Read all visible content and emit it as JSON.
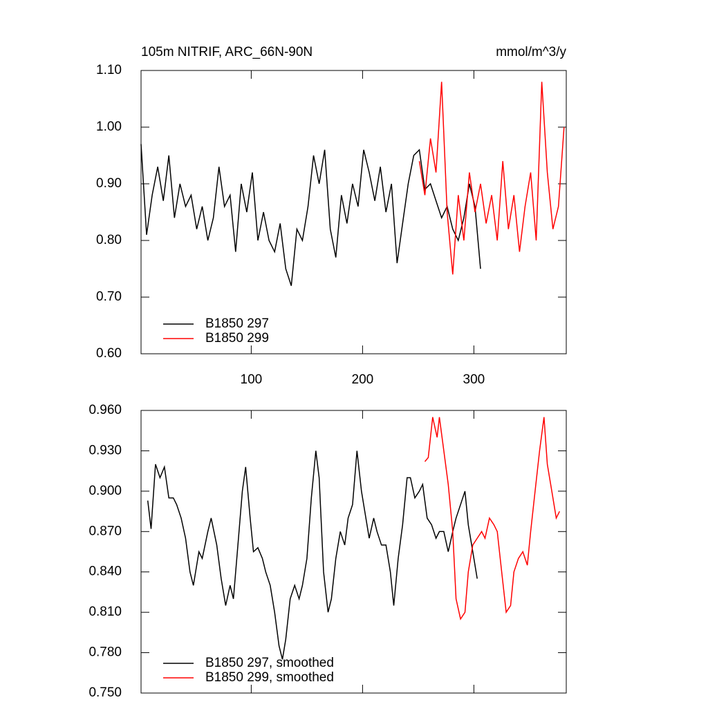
{
  "chart_data": [
    {
      "type": "line",
      "title": "105m NITRIF, ARC_66N-90N",
      "title_right": "mmol/m^3/y",
      "xlim": [
        1,
        383
      ],
      "ylim": [
        0.6,
        1.1
      ],
      "xticks": [
        100,
        200,
        300
      ],
      "xtick_labels": true,
      "yticks": [
        {
          "value": 0.6,
          "label": "0.60"
        },
        {
          "value": 0.7,
          "label": "0.70"
        },
        {
          "value": 0.8,
          "label": "0.80"
        },
        {
          "value": 0.9,
          "label": "0.90"
        },
        {
          "value": 1.0,
          "label": "1.00"
        },
        {
          "value": 1.1,
          "label": "1.10"
        }
      ],
      "legend": "lower left",
      "series": [
        {
          "name": "B1850 297",
          "color": "#000000",
          "x": [
            1,
            6,
            11,
            16,
            21,
            26,
            31,
            36,
            41,
            46,
            51,
            56,
            61,
            66,
            71,
            76,
            81,
            86,
            91,
            96,
            101,
            106,
            111,
            116,
            121,
            126,
            131,
            136,
            141,
            146,
            151,
            156,
            161,
            166,
            171,
            176,
            181,
            186,
            191,
            196,
            201,
            206,
            211,
            216,
            221,
            226,
            231,
            236,
            241,
            246,
            251,
            256,
            261,
            266,
            271,
            276,
            281,
            286,
            291,
            296,
            301,
            306
          ],
          "values": [
            0.97,
            0.81,
            0.88,
            0.93,
            0.87,
            0.95,
            0.84,
            0.9,
            0.86,
            0.88,
            0.82,
            0.86,
            0.8,
            0.84,
            0.93,
            0.86,
            0.88,
            0.78,
            0.9,
            0.85,
            0.92,
            0.8,
            0.85,
            0.8,
            0.78,
            0.83,
            0.75,
            0.72,
            0.82,
            0.8,
            0.86,
            0.95,
            0.9,
            0.96,
            0.82,
            0.77,
            0.88,
            0.83,
            0.9,
            0.86,
            0.96,
            0.92,
            0.87,
            0.93,
            0.85,
            0.9,
            0.76,
            0.83,
            0.9,
            0.95,
            0.96,
            0.89,
            0.9,
            0.87,
            0.84,
            0.86,
            0.82,
            0.8,
            0.84,
            0.9,
            0.86,
            0.75
          ]
        },
        {
          "name": "B1850 299",
          "color": "#ff0000",
          "x": [
            251,
            256,
            261,
            266,
            271,
            276,
            281,
            286,
            291,
            296,
            301,
            306,
            311,
            316,
            321,
            326,
            331,
            336,
            341,
            346,
            351,
            356,
            361,
            366,
            371,
            376,
            381
          ],
          "values": [
            0.94,
            0.88,
            0.98,
            0.92,
            1.08,
            0.85,
            0.74,
            0.88,
            0.8,
            0.92,
            0.85,
            0.9,
            0.83,
            0.88,
            0.8,
            0.94,
            0.82,
            0.88,
            0.78,
            0.86,
            0.92,
            0.8,
            1.08,
            0.92,
            0.82,
            0.86,
            1.0
          ]
        }
      ]
    },
    {
      "type": "line",
      "xlim": [
        1,
        383
      ],
      "ylim": [
        0.75,
        0.96
      ],
      "xticks": [
        100,
        200,
        300
      ],
      "xtick_labels": false,
      "yticks": [
        {
          "value": 0.75,
          "label": "0.750"
        },
        {
          "value": 0.78,
          "label": "0.780"
        },
        {
          "value": 0.81,
          "label": "0.810"
        },
        {
          "value": 0.84,
          "label": "0.840"
        },
        {
          "value": 0.87,
          "label": "0.870"
        },
        {
          "value": 0.9,
          "label": "0.900"
        },
        {
          "value": 0.93,
          "label": "0.930"
        },
        {
          "value": 0.96,
          "label": "0.960"
        }
      ],
      "legend": "lower left",
      "series": [
        {
          "name": "B1850 297, smoothed",
          "color": "#000000",
          "x": [
            7,
            10,
            14,
            18,
            22,
            26,
            30,
            33,
            37,
            41,
            45,
            48,
            53,
            56,
            61,
            64,
            69,
            73,
            77,
            81,
            84,
            88,
            92,
            95,
            99,
            102,
            106,
            110,
            113,
            117,
            121,
            125,
            128,
            131,
            135,
            139,
            143,
            146,
            150,
            154,
            158,
            161,
            165,
            169,
            172,
            176,
            180,
            184,
            187,
            191,
            195,
            199,
            202,
            206,
            210,
            213,
            217,
            221,
            225,
            228,
            232,
            236,
            240,
            243,
            247,
            251,
            254,
            258,
            262,
            266,
            269,
            273,
            277,
            281,
            284,
            288,
            292,
            295,
            299,
            303
          ],
          "values": [
            0.893,
            0.872,
            0.92,
            0.91,
            0.918,
            0.895,
            0.895,
            0.89,
            0.88,
            0.865,
            0.84,
            0.83,
            0.855,
            0.85,
            0.87,
            0.88,
            0.86,
            0.835,
            0.815,
            0.83,
            0.82,
            0.86,
            0.9,
            0.918,
            0.88,
            0.855,
            0.858,
            0.85,
            0.84,
            0.83,
            0.81,
            0.785,
            0.775,
            0.79,
            0.82,
            0.83,
            0.82,
            0.83,
            0.85,
            0.895,
            0.93,
            0.91,
            0.84,
            0.81,
            0.82,
            0.85,
            0.87,
            0.86,
            0.88,
            0.89,
            0.93,
            0.9,
            0.885,
            0.865,
            0.88,
            0.87,
            0.86,
            0.86,
            0.84,
            0.815,
            0.85,
            0.875,
            0.91,
            0.91,
            0.895,
            0.9,
            0.905,
            0.88,
            0.875,
            0.865,
            0.87,
            0.87,
            0.855,
            0.87,
            0.88,
            0.89,
            0.9,
            0.875,
            0.855,
            0.835
          ]
        },
        {
          "name": "B1850 299, smoothed",
          "color": "#ff0000",
          "x": [
            256,
            259,
            263,
            267,
            269,
            273,
            277,
            281,
            284,
            288,
            292,
            295,
            299,
            303,
            307,
            310,
            314,
            318,
            321,
            325,
            329,
            333,
            336,
            340,
            344,
            348,
            351,
            355,
            359,
            363,
            366,
            370,
            374,
            377
          ],
          "values": [
            0.922,
            0.925,
            0.955,
            0.94,
            0.955,
            0.93,
            0.905,
            0.87,
            0.82,
            0.805,
            0.81,
            0.84,
            0.86,
            0.865,
            0.87,
            0.865,
            0.88,
            0.875,
            0.87,
            0.84,
            0.81,
            0.815,
            0.84,
            0.85,
            0.855,
            0.845,
            0.87,
            0.9,
            0.93,
            0.955,
            0.92,
            0.9,
            0.88,
            0.885
          ]
        }
      ]
    }
  ]
}
